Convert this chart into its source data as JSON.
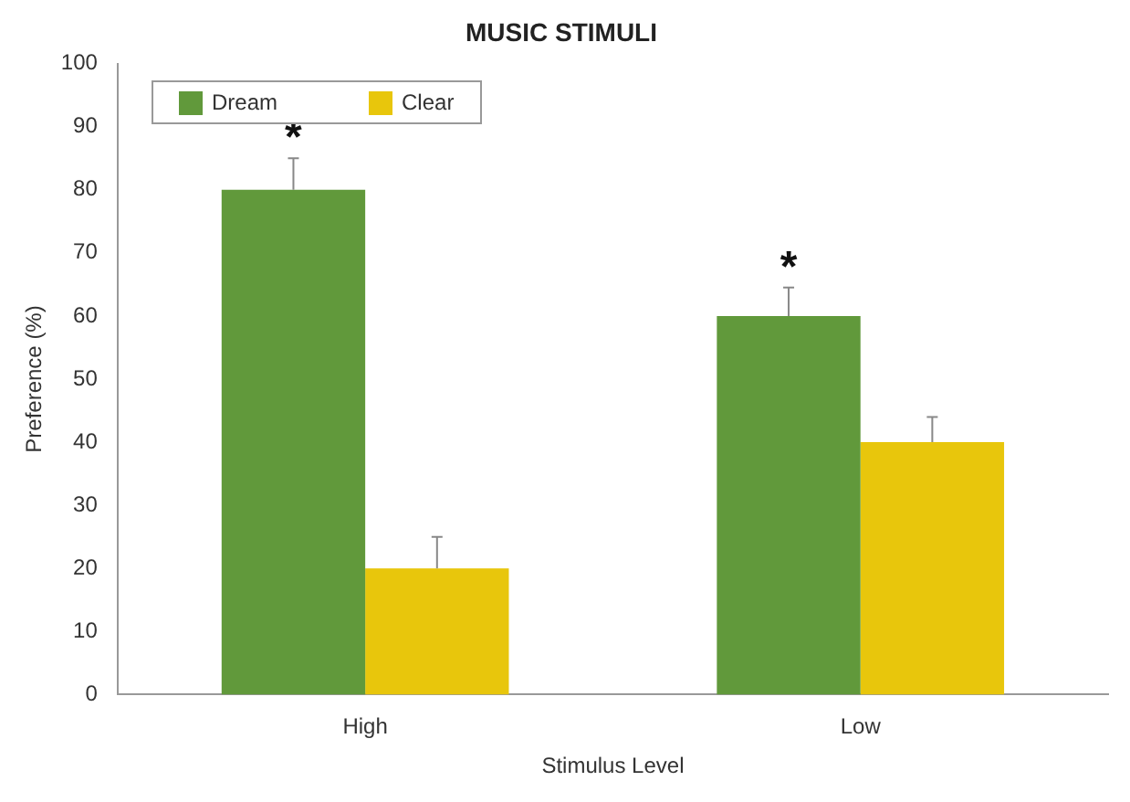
{
  "chart_data": {
    "type": "bar",
    "title": "MUSIC STIMULI",
    "xlabel": "Stimulus Level",
    "ylabel": "Preference (%)",
    "categories": [
      "High",
      "Low"
    ],
    "series": [
      {
        "name": "Dream",
        "color": "#61993b",
        "values": [
          80,
          60
        ],
        "errors": [
          5,
          4.5
        ]
      },
      {
        "name": "Clear",
        "color": "#e8c60c",
        "values": [
          20,
          40
        ],
        "errors": [
          5,
          4
        ]
      }
    ],
    "ylim": [
      0,
      100
    ],
    "yticks": [
      0,
      10,
      20,
      30,
      40,
      50,
      60,
      70,
      80,
      90,
      100
    ],
    "grid": false,
    "legend": "top left",
    "annotations": [
      "*",
      "*"
    ]
  }
}
